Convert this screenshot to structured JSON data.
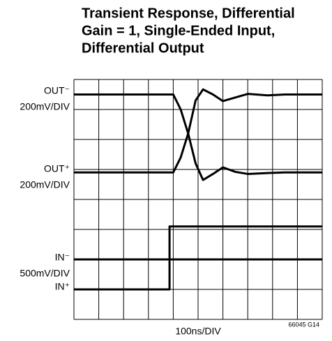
{
  "chart_data": {
    "type": "line",
    "title": [
      "Transient Response, Differential",
      "Gain = 1, Single-Ended Input,",
      "Differential Output"
    ],
    "xlabel": "100ns/DIV",
    "annotations": [
      "OUT⁻",
      "200mV/DIV",
      "OUT⁺",
      "200mV/DIV",
      "IN⁻",
      "500mV/DIV",
      "IN⁺",
      "66045 G14"
    ],
    "xlim": [
      0,
      10
    ],
    "ylim": [
      0,
      8
    ],
    "xticks": [
      0,
      1,
      2,
      3,
      4,
      5,
      6,
      7,
      8,
      9,
      10
    ],
    "yticks": [
      0,
      1,
      2,
      3,
      4,
      5,
      6,
      7,
      8
    ],
    "grid": true,
    "series": [
      {
        "color": "#000000",
        "x": [
          0,
          4.0,
          4.3,
          4.6,
          4.9,
          5.2,
          5.6,
          6.0,
          6.5,
          7.0,
          7.8,
          8.5,
          10
        ],
        "values": [
          7.5,
          7.5,
          7.0,
          6.2,
          5.2,
          4.65,
          4.85,
          5.07,
          4.92,
          4.85,
          4.88,
          4.9,
          4.9
        ]
      },
      {
        "color": "#000000",
        "x": [
          0,
          4.0,
          4.3,
          4.6,
          4.9,
          5.2,
          5.6,
          6.0,
          6.5,
          7.0,
          7.8,
          8.5,
          10
        ],
        "values": [
          4.9,
          4.9,
          5.4,
          6.2,
          7.3,
          7.67,
          7.5,
          7.28,
          7.4,
          7.52,
          7.47,
          7.5,
          7.5
        ]
      },
      {
        "color": "#000000",
        "x": [
          0,
          10
        ],
        "values": [
          2,
          2
        ]
      },
      {
        "color": "#000000",
        "x": [
          0,
          3.85,
          3.85,
          10
        ],
        "values": [
          1,
          1,
          3.1,
          3.1
        ]
      }
    ]
  }
}
